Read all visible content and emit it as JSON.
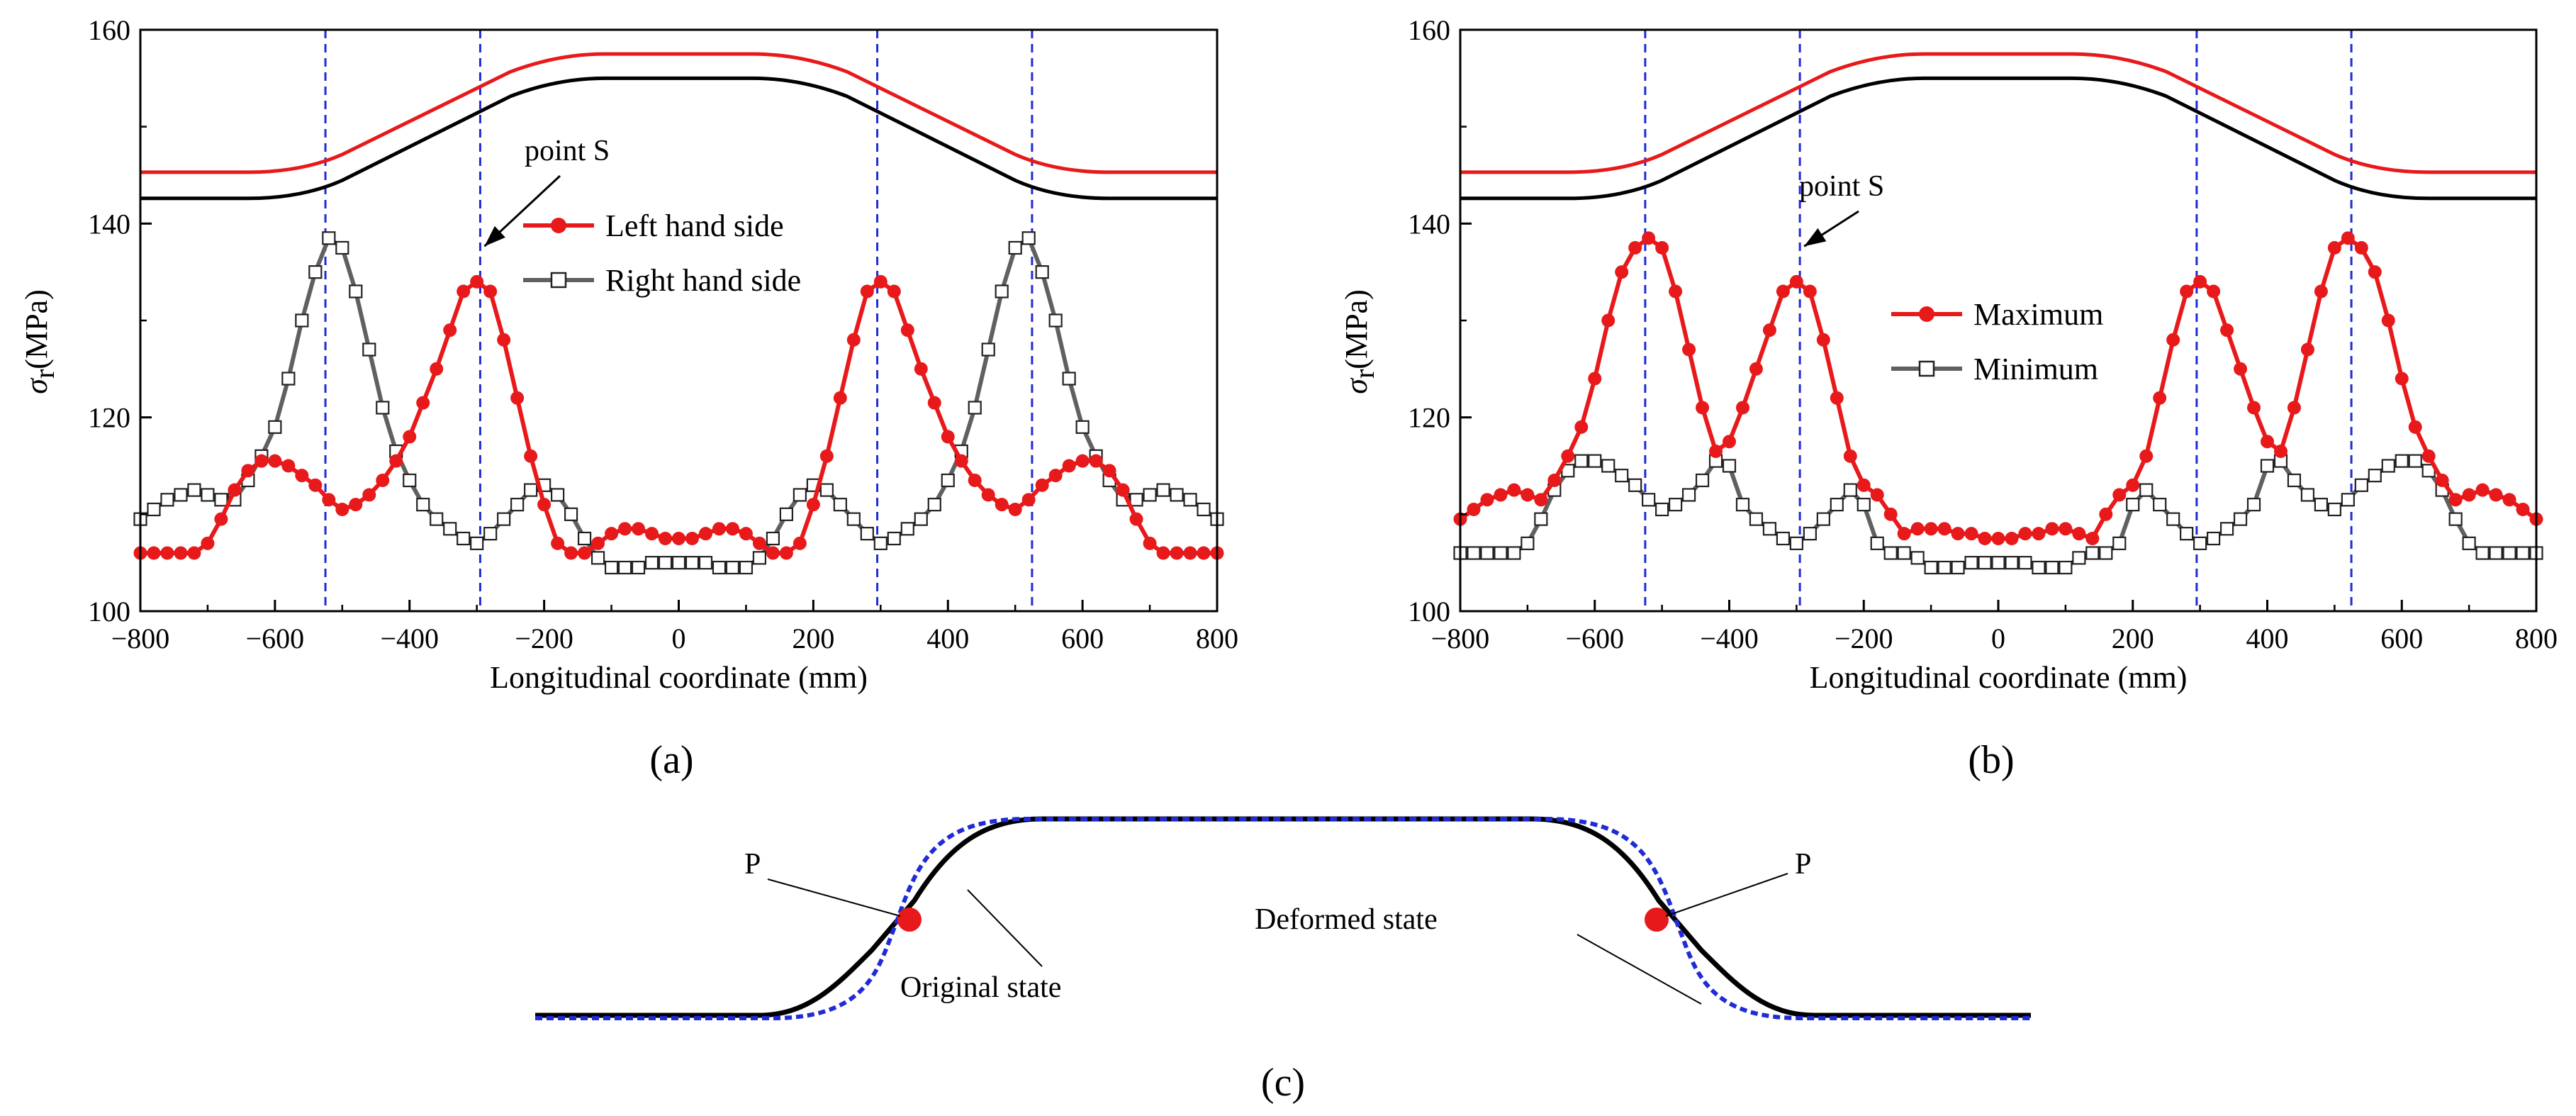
{
  "chart_data": [
    {
      "panel": "a",
      "panel_label": "(a)",
      "type": "line",
      "xlabel": "Longitudinal coordinate (mm)",
      "ylabel": "σ",
      "ylabel_sub": "r",
      "ylabel_unit": "(MPa)",
      "xlim": [
        -800,
        800
      ],
      "ylim": [
        100,
        160
      ],
      "xticks": [
        -800,
        -600,
        -400,
        -200,
        0,
        200,
        400,
        600,
        800
      ],
      "xtick_labels": [
        "−800",
        "−600",
        "−400",
        "−200",
        "0",
        "200",
        "400",
        "600",
        "800"
      ],
      "yticks": [
        100,
        120,
        140,
        160
      ],
      "ytick_labels": [
        "100",
        "120",
        "140",
        "160"
      ],
      "vlines": [
        -525,
        -295,
        295,
        525
      ],
      "annotation": {
        "text": "point S",
        "target": [
          -295,
          134
        ]
      },
      "geometry_overlay": {
        "red": {
          "flat_low": 145.3,
          "flat_high": 157.5
        },
        "black": {
          "flat_low": 142.6,
          "flat_high": 155.0
        }
      },
      "series": [
        {
          "name": "Left hand side",
          "color": "#e8191a",
          "marker": "filled-circle",
          "x": [
            -800,
            -780,
            -760,
            -740,
            -720,
            -700,
            -680,
            -660,
            -640,
            -620,
            -600,
            -580,
            -560,
            -540,
            -520,
            -500,
            -480,
            -460,
            -440,
            -420,
            -400,
            -380,
            -360,
            -340,
            -320,
            -300,
            -280,
            -260,
            -240,
            -220,
            -200,
            -180,
            -160,
            -140,
            -120,
            -100,
            -80,
            -60,
            -40,
            -20,
            0,
            20,
            40,
            60,
            80,
            100,
            120,
            140,
            160,
            180,
            200,
            220,
            240,
            260,
            280,
            300,
            320,
            340,
            360,
            380,
            400,
            420,
            440,
            460,
            480,
            500,
            520,
            540,
            560,
            580,
            600,
            620,
            640,
            660,
            680,
            700,
            720,
            740,
            760,
            780,
            800
          ],
          "y": [
            106.0,
            106.0,
            106.0,
            106.0,
            106.0,
            107.0,
            109.5,
            112.5,
            114.5,
            115.5,
            115.5,
            115.0,
            114.0,
            113.0,
            111.5,
            110.5,
            111.0,
            112.0,
            113.5,
            115.5,
            118.0,
            121.5,
            125.0,
            129.0,
            133.0,
            134.0,
            133.0,
            128.0,
            122.0,
            116.0,
            111.0,
            107.0,
            106.0,
            106.0,
            107.0,
            108.0,
            108.5,
            108.5,
            108.0,
            107.5,
            107.5,
            107.5,
            108.0,
            108.5,
            108.5,
            108.0,
            107.0,
            106.0,
            106.0,
            107.0,
            111.0,
            116.0,
            122.0,
            128.0,
            133.0,
            134.0,
            133.0,
            129.0,
            125.0,
            121.5,
            118.0,
            115.5,
            113.5,
            112.0,
            111.0,
            110.5,
            111.5,
            113.0,
            114.0,
            115.0,
            115.5,
            115.5,
            114.5,
            112.5,
            109.5,
            107.0,
            106.0,
            106.0,
            106.0,
            106.0,
            106.0
          ]
        },
        {
          "name": "Right hand side",
          "color": "#606060",
          "marker": "open-square",
          "x": [
            -800,
            -780,
            -760,
            -740,
            -720,
            -700,
            -680,
            -660,
            -640,
            -620,
            -600,
            -580,
            -560,
            -540,
            -520,
            -500,
            -480,
            -460,
            -440,
            -420,
            -400,
            -380,
            -360,
            -340,
            -320,
            -300,
            -280,
            -260,
            -240,
            -220,
            -200,
            -180,
            -160,
            -140,
            -120,
            -100,
            -80,
            -60,
            -40,
            -20,
            0,
            20,
            40,
            60,
            80,
            100,
            120,
            140,
            160,
            180,
            200,
            220,
            240,
            260,
            280,
            300,
            320,
            340,
            360,
            380,
            400,
            420,
            440,
            460,
            480,
            500,
            520,
            540,
            560,
            580,
            600,
            620,
            640,
            660,
            680,
            700,
            720,
            740,
            760,
            780,
            800
          ],
          "y": [
            109.5,
            110.5,
            111.5,
            112.0,
            112.5,
            112.0,
            111.5,
            111.5,
            113.5,
            116.0,
            119.0,
            124.0,
            130.0,
            135.0,
            138.5,
            137.5,
            133.0,
            127.0,
            121.0,
            116.5,
            113.5,
            111.0,
            109.5,
            108.5,
            107.5,
            107.0,
            108.0,
            109.5,
            111.0,
            112.5,
            113.0,
            112.0,
            110.0,
            107.5,
            105.5,
            104.5,
            104.5,
            104.5,
            105.0,
            105.0,
            105.0,
            105.0,
            105.0,
            104.5,
            104.5,
            104.5,
            105.5,
            107.5,
            110.0,
            112.0,
            113.0,
            112.5,
            111.0,
            109.5,
            108.0,
            107.0,
            107.5,
            108.5,
            109.5,
            111.0,
            113.5,
            116.5,
            121.0,
            127.0,
            133.0,
            137.5,
            138.5,
            135.0,
            130.0,
            124.0,
            119.0,
            116.0,
            113.5,
            111.5,
            111.5,
            112.0,
            112.5,
            112.0,
            111.5,
            110.5,
            109.5
          ]
        }
      ]
    },
    {
      "panel": "b",
      "panel_label": "(b)",
      "type": "line",
      "xlabel": "Longitudinal coordinate (mm)",
      "ylabel": "σ",
      "ylabel_sub": "r",
      "ylabel_unit": "(MPa)",
      "xlim": [
        -800,
        800
      ],
      "ylim": [
        100,
        160
      ],
      "xticks": [
        -800,
        -600,
        -400,
        -200,
        0,
        200,
        400,
        600,
        800
      ],
      "xtick_labels": [
        "−800",
        "−600",
        "−400",
        "−200",
        "0",
        "200",
        "400",
        "600",
        "800"
      ],
      "yticks": [
        100,
        120,
        140,
        160
      ],
      "ytick_labels": [
        "100",
        "120",
        "140",
        "160"
      ],
      "vlines": [
        -525,
        -295,
        295,
        525
      ],
      "annotation": {
        "text": "point S",
        "target": [
          -295,
          134
        ]
      },
      "geometry_overlay": {
        "red": {
          "flat_low": 145.3,
          "flat_high": 157.5
        },
        "black": {
          "flat_low": 142.6,
          "flat_high": 155.0
        }
      },
      "series": [
        {
          "name": "Maximum",
          "color": "#e8191a",
          "marker": "filled-circle",
          "x": [
            -800,
            -780,
            -760,
            -740,
            -720,
            -700,
            -680,
            -660,
            -640,
            -620,
            -600,
            -580,
            -560,
            -540,
            -520,
            -500,
            -480,
            -460,
            -440,
            -420,
            -400,
            -380,
            -360,
            -340,
            -320,
            -300,
            -280,
            -260,
            -240,
            -220,
            -200,
            -180,
            -160,
            -140,
            -120,
            -100,
            -80,
            -60,
            -40,
            -20,
            0,
            20,
            40,
            60,
            80,
            100,
            120,
            140,
            160,
            180,
            200,
            220,
            240,
            260,
            280,
            300,
            320,
            340,
            360,
            380,
            400,
            420,
            440,
            460,
            480,
            500,
            520,
            540,
            560,
            580,
            600,
            620,
            640,
            660,
            680,
            700,
            720,
            740,
            760,
            780,
            800
          ],
          "y": [
            109.5,
            110.5,
            111.5,
            112.0,
            112.5,
            112.0,
            111.5,
            113.5,
            116.0,
            119.0,
            124.0,
            130.0,
            135.0,
            137.5,
            138.5,
            137.5,
            133.0,
            127.0,
            121.0,
            116.5,
            117.5,
            121.0,
            125.0,
            129.0,
            133.0,
            134.0,
            133.0,
            128.0,
            122.0,
            116.0,
            113.0,
            112.0,
            110.0,
            108.0,
            108.5,
            108.5,
            108.5,
            108.0,
            108.0,
            107.5,
            107.5,
            107.5,
            108.0,
            108.0,
            108.5,
            108.5,
            108.0,
            107.5,
            110.0,
            112.0,
            113.0,
            116.0,
            122.0,
            128.0,
            133.0,
            134.0,
            133.0,
            129.0,
            125.0,
            121.0,
            117.5,
            116.5,
            121.0,
            127.0,
            133.0,
            137.5,
            138.5,
            137.5,
            135.0,
            130.0,
            124.0,
            119.0,
            116.0,
            113.5,
            111.5,
            112.0,
            112.5,
            112.0,
            111.5,
            110.5,
            109.5
          ]
        },
        {
          "name": "Minimum",
          "color": "#606060",
          "marker": "open-square",
          "x": [
            -800,
            -780,
            -760,
            -740,
            -720,
            -700,
            -680,
            -660,
            -640,
            -620,
            -600,
            -580,
            -560,
            -540,
            -520,
            -500,
            -480,
            -460,
            -440,
            -420,
            -400,
            -380,
            -360,
            -340,
            -320,
            -300,
            -280,
            -260,
            -240,
            -220,
            -200,
            -180,
            -160,
            -140,
            -120,
            -100,
            -80,
            -60,
            -40,
            -20,
            0,
            20,
            40,
            60,
            80,
            100,
            120,
            140,
            160,
            180,
            200,
            220,
            240,
            260,
            280,
            300,
            320,
            340,
            360,
            380,
            400,
            420,
            440,
            460,
            480,
            500,
            520,
            540,
            560,
            580,
            600,
            620,
            640,
            660,
            680,
            700,
            720,
            740,
            760,
            780,
            800
          ],
          "y": [
            106.0,
            106.0,
            106.0,
            106.0,
            106.0,
            107.0,
            109.5,
            112.5,
            114.5,
            115.5,
            115.5,
            115.0,
            114.0,
            113.0,
            111.5,
            110.5,
            111.0,
            112.0,
            113.5,
            115.5,
            115.0,
            111.0,
            109.5,
            108.5,
            107.5,
            107.0,
            108.0,
            109.5,
            111.0,
            112.5,
            111.0,
            107.0,
            106.0,
            106.0,
            105.5,
            104.5,
            104.5,
            104.5,
            105.0,
            105.0,
            105.0,
            105.0,
            105.0,
            104.5,
            104.5,
            104.5,
            105.5,
            106.0,
            106.0,
            107.0,
            111.0,
            112.5,
            111.0,
            109.5,
            108.0,
            107.0,
            107.5,
            108.5,
            109.5,
            111.0,
            115.0,
            115.5,
            113.5,
            112.0,
            111.0,
            110.5,
            111.5,
            113.0,
            114.0,
            115.0,
            115.5,
            115.5,
            114.5,
            112.5,
            109.5,
            107.0,
            106.0,
            106.0,
            106.0,
            106.0,
            106.0
          ]
        }
      ]
    }
  ],
  "diagram_c": {
    "panel_label": "(c)",
    "labels": {
      "p_left": "P",
      "p_right": "P",
      "original": "Original state",
      "deformed": "Deformed state"
    },
    "colors": {
      "original": "#000000",
      "deformed": "#1f2bd6",
      "point": "#e8191a"
    }
  }
}
